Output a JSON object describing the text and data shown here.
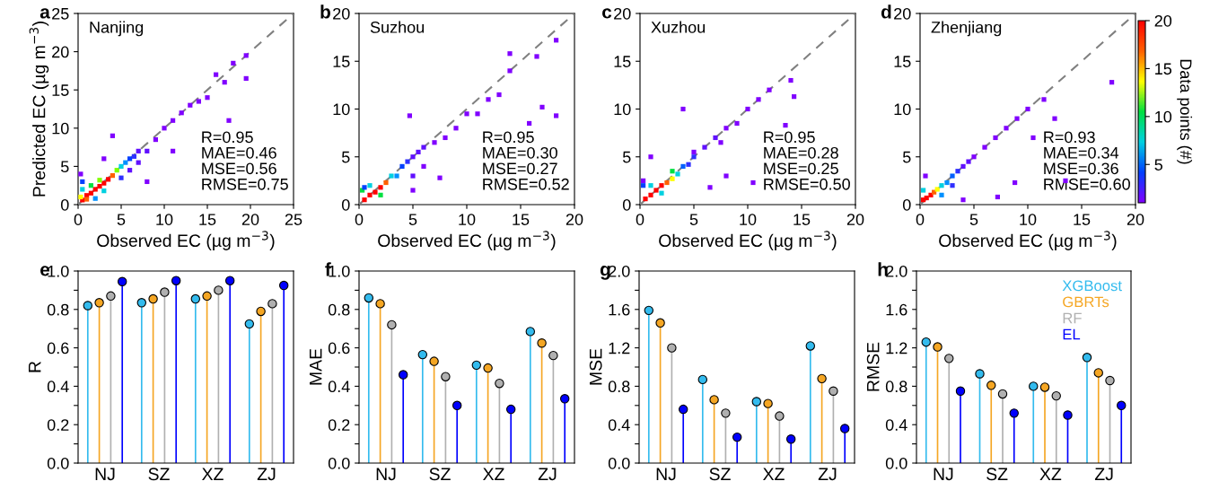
{
  "chart_data": [
    {
      "type": "scatter",
      "title": "a",
      "ylabel": "Predicted EC (µg m$^{−3}$)",
      "xlabel": "Observed EC (µg m$^{−3}$)",
      "xlim": [
        0,
        25
      ],
      "ylim": [
        0,
        25
      ],
      "xticks": [
        0,
        5,
        10,
        15,
        20,
        25
      ],
      "yticks": [
        0,
        5,
        10,
        15,
        20,
        25
      ],
      "annotations": [
        "Nanjing",
        "R=0.95\nMAE=0.46\nMSE=0.56\nRMSE=0.75"
      ],
      "series": [
        {
          "type": "scatter",
          "marker": "square",
          "x": [
            0.5,
            1,
            1.5,
            2,
            2.5,
            3,
            3.5,
            4,
            1,
            0.3,
            0.5,
            1.5,
            2.5,
            4.5,
            5,
            5.5,
            6,
            6.5,
            7,
            5,
            6,
            7,
            8,
            9,
            10,
            11,
            12,
            13,
            14,
            15,
            16,
            17,
            18,
            19.5,
            19.5,
            17.5,
            11,
            8,
            0.3,
            4,
            3,
            0.5,
            2,
            3
          ],
          "values": [
            0.6,
            1.2,
            1.5,
            2,
            2.4,
            2.8,
            3.3,
            3.8,
            0.7,
            1,
            2,
            2.5,
            3.2,
            4.5,
            5,
            5.5,
            6,
            6.3,
            7,
            3.5,
            4.5,
            5.5,
            7,
            8.5,
            10,
            11,
            12,
            13,
            13.5,
            14,
            17,
            16,
            18.5,
            19.5,
            16.5,
            11,
            7,
            3,
            4,
            9,
            6,
            3,
            0.8,
            1.8
          ],
          "colors": [
            "#ff0000",
            "#ff0000",
            "#ff0000",
            "#ff0000",
            "#ff0000",
            "#ff0000",
            "#ff0000",
            "#ff6000",
            "#ff6000",
            "#ffff00",
            "#00d0e0",
            "#00e040",
            "#80ff00",
            "#80ff00",
            "#00d0e0",
            "#0090ff",
            "#0040ff",
            "#3030ff",
            "#6010ff",
            "#3030ff",
            "#6010ff",
            "#6010ff",
            "#6010ff",
            "#8000ff",
            "#8000ff",
            "#8000ff",
            "#8000ff",
            "#8000ff",
            "#8000ff",
            "#8000ff",
            "#8000ff",
            "#8000ff",
            "#8000ff",
            "#8000ff",
            "#8000ff",
            "#8000ff",
            "#8000ff",
            "#8000ff",
            "#8000ff",
            "#8000ff",
            "#8000ff",
            "#0040ff",
            "#0090ff",
            "#00d0e0"
          ]
        },
        {
          "type": "line",
          "marker": "none",
          "x": [
            0,
            25
          ],
          "values": [
            0,
            25
          ],
          "color": "#808080",
          "line_style": "dashed"
        }
      ]
    },
    {
      "type": "scatter",
      "title": "b",
      "xlabel": "Observed EC (µg m$^{−3}$)",
      "xlim": [
        0,
        20
      ],
      "ylim": [
        0,
        20
      ],
      "xticks": [
        0,
        5,
        10,
        15,
        20
      ],
      "yticks": [
        0,
        5,
        10,
        15,
        20
      ],
      "annotations": [
        "Suzhou",
        "R=0.95\nMAE=0.30\nMSE=0.27\nRMSE=0.52"
      ],
      "series": [
        {
          "type": "scatter",
          "marker": "square",
          "x": [
            0.5,
            1,
            1.5,
            2,
            2.5,
            0.3,
            1,
            2,
            3,
            3.5,
            4,
            4.5,
            5,
            5.5,
            6,
            7,
            5,
            6,
            8,
            9,
            10,
            11,
            12,
            13,
            14,
            14,
            16.5,
            18.3,
            17,
            18.3,
            15.8,
            4.7,
            5,
            7.5,
            0.5
          ],
          "values": [
            0.5,
            1,
            1.3,
            1.8,
            2.3,
            1.5,
            2,
            1,
            3,
            3,
            4,
            4.5,
            5,
            5.5,
            6,
            6.5,
            3,
            4,
            7,
            8,
            9.5,
            9.5,
            11,
            11.5,
            15.8,
            14,
            15.5,
            17.2,
            10.2,
            9.3,
            8.5,
            9.3,
            1.5,
            2.8,
            1.8
          ],
          "colors": [
            "#ff0000",
            "#ff0000",
            "#ff0000",
            "#ff0000",
            "#ff6000",
            "#00e040",
            "#00d0e0",
            "#00e040",
            "#00d0e0",
            "#0090ff",
            "#0040ff",
            "#3030ff",
            "#6010ff",
            "#6010ff",
            "#6010ff",
            "#8000ff",
            "#6010ff",
            "#8000ff",
            "#8000ff",
            "#8000ff",
            "#8000ff",
            "#8000ff",
            "#8000ff",
            "#8000ff",
            "#8000ff",
            "#8000ff",
            "#8000ff",
            "#8000ff",
            "#8000ff",
            "#8000ff",
            "#8000ff",
            "#8000ff",
            "#8000ff",
            "#8000ff",
            "#0040ff"
          ]
        },
        {
          "type": "line",
          "marker": "none",
          "x": [
            0,
            20
          ],
          "values": [
            0,
            20
          ],
          "color": "#808080",
          "line_style": "dashed"
        }
      ]
    },
    {
      "type": "scatter",
      "title": "c",
      "xlabel": "Observed EC (µg m$^{−3}$)",
      "xlim": [
        0,
        20
      ],
      "ylim": [
        0,
        20
      ],
      "xticks": [
        0,
        5,
        10,
        15,
        20
      ],
      "yticks": [
        0,
        5,
        10,
        15,
        20
      ],
      "annotations": [
        "Xuzhou",
        "R=0.95\nMAE=0.28\nMSE=0.25\nRMSE=0.50"
      ],
      "series": [
        {
          "type": "scatter",
          "marker": "square",
          "x": [
            0.5,
            1,
            1.5,
            2,
            2.5,
            3,
            0.3,
            1,
            2,
            3,
            3.5,
            4,
            4.5,
            5,
            6,
            7,
            7.5,
            8,
            9,
            10,
            11,
            12,
            14,
            14.3,
            13.5,
            10.5,
            4,
            5,
            8,
            1,
            6.5,
            0.3
          ],
          "values": [
            0.6,
            1,
            1.5,
            2,
            2.3,
            2.7,
            2,
            2,
            1.2,
            3.5,
            3.2,
            4,
            4.2,
            5,
            6,
            7,
            6.5,
            8,
            8.5,
            10,
            11,
            12,
            13,
            11.3,
            8.3,
            2.3,
            10,
            5.5,
            3,
            5,
            1.8,
            2.5
          ],
          "colors": [
            "#ff0000",
            "#ff0000",
            "#ff0000",
            "#ff0000",
            "#ff6000",
            "#ffff00",
            "#0040ff",
            "#00d0e0",
            "#00d0e0",
            "#00e040",
            "#00d0e0",
            "#0060ff",
            "#3030ff",
            "#3030ff",
            "#6010ff",
            "#6010ff",
            "#8000ff",
            "#8000ff",
            "#8000ff",
            "#8000ff",
            "#8000ff",
            "#8000ff",
            "#8000ff",
            "#8000ff",
            "#8000ff",
            "#8000ff",
            "#8000ff",
            "#8000ff",
            "#8000ff",
            "#8000ff",
            "#8000ff",
            "#8000ff"
          ]
        },
        {
          "type": "line",
          "marker": "none",
          "x": [
            0,
            20
          ],
          "values": [
            0,
            20
          ],
          "color": "#808080",
          "line_style": "dashed"
        }
      ]
    },
    {
      "type": "scatter",
      "title": "d",
      "xlabel": "Observed EC (µg m$^{−3}$)",
      "xlim": [
        0,
        20
      ],
      "ylim": [
        0,
        20
      ],
      "xticks": [
        0,
        5,
        10,
        15,
        20
      ],
      "yticks": [
        0,
        5,
        10,
        15,
        20
      ],
      "clim": [
        1,
        20
      ],
      "cticks": [
        5,
        10,
        15,
        20
      ],
      "clabel": "Data points (#)",
      "annotations": [
        "Zhenjiang",
        "R=0.93\nMAE=0.34\nMSE=0.36\nRMSE=0.60"
      ],
      "series": [
        {
          "type": "scatter",
          "marker": "square",
          "x": [
            0.3,
            0.6,
            1,
            1.3,
            1.6,
            0.3,
            2,
            2.5,
            3,
            3.5,
            4,
            4.5,
            5,
            6,
            7,
            8,
            9,
            10,
            11.5,
            12.5,
            17.8,
            13.5,
            8.8,
            7.2,
            3,
            2,
            0.5,
            4,
            10.5
          ],
          "values": [
            0.5,
            0.7,
            1,
            1.3,
            1.6,
            1.5,
            2,
            2.3,
            3,
            3.5,
            4,
            4.5,
            5,
            6,
            7,
            8,
            9,
            10,
            11,
            9,
            12.8,
            2.5,
            2.3,
            0.8,
            2,
            1,
            3,
            0.5,
            7
          ],
          "colors": [
            "#ff0000",
            "#ff0000",
            "#ff0000",
            "#ff6000",
            "#ffff00",
            "#00d0e0",
            "#00d0e0",
            "#0090ff",
            "#0060ff",
            "#3030ff",
            "#6010ff",
            "#6010ff",
            "#8000ff",
            "#8000ff",
            "#8000ff",
            "#8000ff",
            "#8000ff",
            "#8000ff",
            "#8000ff",
            "#8000ff",
            "#8000ff",
            "#8000ff",
            "#8000ff",
            "#8000ff",
            "#3030ff",
            "#0090ff",
            "#8000ff",
            "#8000ff",
            "#8000ff"
          ]
        },
        {
          "type": "line",
          "marker": "none",
          "x": [
            0,
            20
          ],
          "values": [
            0,
            20
          ],
          "color": "#808080",
          "line_style": "dashed"
        }
      ]
    },
    {
      "type": "lollipop",
      "title": "e",
      "ylabel": "R",
      "categories": [
        "NJ",
        "SZ",
        "XZ",
        "ZJ"
      ],
      "ylim": [
        0,
        1
      ],
      "marker": "circle",
      "yticks": [
        {
          "value": 0,
          "label": "0.0"
        },
        {
          "value": 0.1,
          "label": null
        },
        {
          "value": 0.2,
          "label": "0.2"
        },
        {
          "value": 0.3,
          "label": null
        },
        {
          "value": 0.4,
          "label": "0.4"
        },
        {
          "value": 0.5,
          "label": null
        },
        {
          "value": 0.6,
          "label": "0.6"
        },
        {
          "value": 0.7,
          "label": null
        },
        {
          "value": 0.8,
          "label": "0.8"
        },
        {
          "value": 0.9,
          "label": null
        },
        {
          "value": 1,
          "label": "1.0"
        }
      ],
      "series": [
        {
          "color": "#33bbee",
          "values": [
            0.82,
            0.835,
            0.855,
            0.725
          ]
        },
        {
          "color": "#f5a623",
          "values": [
            0.835,
            0.855,
            0.87,
            0.79
          ]
        },
        {
          "color": "#b0b0b0",
          "values": [
            0.87,
            0.89,
            0.9,
            0.83
          ]
        },
        {
          "color": "#0000ff",
          "values": [
            0.945,
            0.95,
            0.95,
            0.925
          ]
        }
      ]
    },
    {
      "type": "lollipop",
      "title": "f",
      "ylabel": "MAE",
      "categories": [
        "NJ",
        "SZ",
        "XZ",
        "ZJ"
      ],
      "ylim": [
        0,
        1
      ],
      "marker": "circle",
      "yticks": [
        {
          "value": 0,
          "label": "0.0"
        },
        {
          "value": 0.1,
          "label": null
        },
        {
          "value": 0.2,
          "label": "0.2"
        },
        {
          "value": 0.3,
          "label": null
        },
        {
          "value": 0.4,
          "label": "0.4"
        },
        {
          "value": 0.5,
          "label": null
        },
        {
          "value": 0.6,
          "label": "0.6"
        },
        {
          "value": 0.7,
          "label": null
        },
        {
          "value": 0.8,
          "label": "0.8"
        },
        {
          "value": 0.9,
          "label": null
        },
        {
          "value": 1,
          "label": "1.0"
        }
      ],
      "series": [
        {
          "color": "#33bbee",
          "values": [
            0.86,
            0.565,
            0.51,
            0.685
          ]
        },
        {
          "color": "#f5a623",
          "values": [
            0.83,
            0.53,
            0.495,
            0.625
          ]
        },
        {
          "color": "#b0b0b0",
          "values": [
            0.72,
            0.45,
            0.415,
            0.56
          ]
        },
        {
          "color": "#0000ff",
          "values": [
            0.46,
            0.3,
            0.28,
            0.335
          ]
        }
      ]
    },
    {
      "type": "lollipop",
      "title": "g",
      "ylabel": "MSE",
      "categories": [
        "NJ",
        "SZ",
        "XZ",
        "ZJ"
      ],
      "ylim": [
        0,
        2
      ],
      "marker": "circle",
      "yticks": [
        {
          "value": 0,
          "label": "0.0"
        },
        {
          "value": 0.2,
          "label": null
        },
        {
          "value": 0.4,
          "label": "0.4"
        },
        {
          "value": 0.6,
          "label": null
        },
        {
          "value": 0.8,
          "label": "0.8"
        },
        {
          "value": 1,
          "label": null
        },
        {
          "value": 1.2,
          "label": "1.2"
        },
        {
          "value": 1.4,
          "label": null
        },
        {
          "value": 1.6,
          "label": "1.6"
        },
        {
          "value": 1.8,
          "label": null
        },
        {
          "value": 2,
          "label": "2.0"
        }
      ],
      "series": [
        {
          "color": "#33bbee",
          "values": [
            1.59,
            0.87,
            0.64,
            1.22
          ]
        },
        {
          "color": "#f5a623",
          "values": [
            1.46,
            0.66,
            0.62,
            0.88
          ]
        },
        {
          "color": "#b0b0b0",
          "values": [
            1.2,
            0.52,
            0.49,
            0.75
          ]
        },
        {
          "color": "#0000ff",
          "values": [
            0.56,
            0.27,
            0.25,
            0.36
          ]
        }
      ]
    },
    {
      "type": "lollipop",
      "title": "h",
      "ylabel": "RMSE",
      "categories": [
        "NJ",
        "SZ",
        "XZ",
        "ZJ"
      ],
      "ylim": [
        0,
        2
      ],
      "marker": "circle",
      "legend": "top right",
      "yticks": [
        {
          "value": 0,
          "label": "0.0"
        },
        {
          "value": 0.2,
          "label": null
        },
        {
          "value": 0.4,
          "label": "0.4"
        },
        {
          "value": 0.6,
          "label": null
        },
        {
          "value": 0.8,
          "label": "0.8"
        },
        {
          "value": 1,
          "label": null
        },
        {
          "value": 1.2,
          "label": "1.2"
        },
        {
          "value": 1.4,
          "label": null
        },
        {
          "value": 1.6,
          "label": "1.6"
        },
        {
          "value": 1.8,
          "label": null
        },
        {
          "value": 2,
          "label": "2.0"
        }
      ],
      "series": [
        {
          "name": "XGBoost",
          "color": "#33bbee",
          "values": [
            1.26,
            0.93,
            0.8,
            1.1
          ]
        },
        {
          "name": "GBRTs",
          "color": "#f5a623",
          "values": [
            1.21,
            0.81,
            0.79,
            0.94
          ]
        },
        {
          "name": "RF",
          "color": "#b0b0b0",
          "values": [
            1.09,
            0.72,
            0.7,
            0.86
          ]
        },
        {
          "name": "EL",
          "color": "#0000ff",
          "values": [
            0.75,
            0.52,
            0.5,
            0.6
          ]
        }
      ]
    }
  ]
}
